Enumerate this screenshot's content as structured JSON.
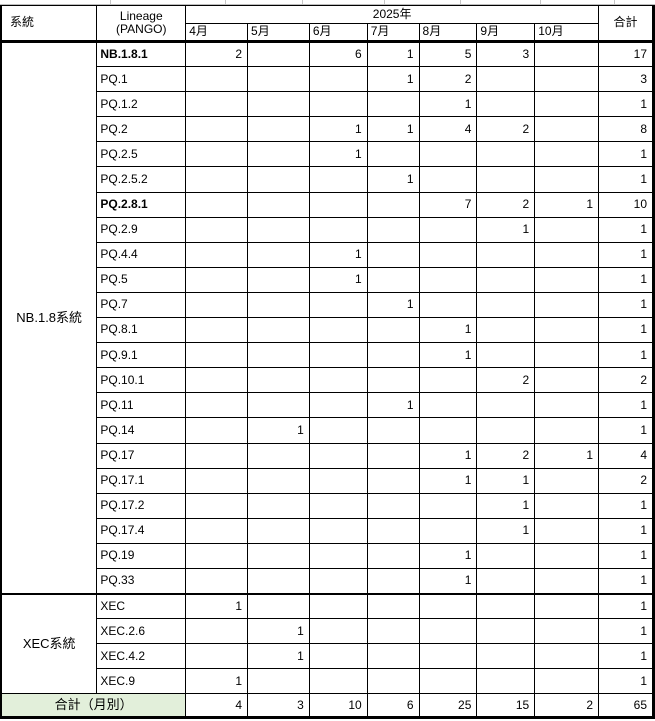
{
  "colors": {
    "header_fill": "#e2efda",
    "border": "#000000",
    "sheet_gridline": "#bdbdbd",
    "text": "#000000"
  },
  "table": {
    "header": {
      "col_group": "系統",
      "lineage_line1": "Lineage",
      "lineage_line2": "(PANGO)",
      "year": "2025年",
      "months": [
        "4月",
        "5月",
        "6月",
        "7月",
        "8月",
        "9月",
        "10月"
      ],
      "total": "合計"
    },
    "groups": [
      {
        "name": "NB.1.8系統",
        "rows": [
          {
            "lineage": "NB.1.8.1",
            "bold": true,
            "values": [
              2,
              null,
              6,
              1,
              5,
              3,
              null
            ],
            "total": 17
          },
          {
            "lineage": "PQ.1",
            "bold": false,
            "values": [
              null,
              null,
              null,
              1,
              2,
              null,
              null
            ],
            "total": 3
          },
          {
            "lineage": "PQ.1.2",
            "bold": false,
            "values": [
              null,
              null,
              null,
              null,
              1,
              null,
              null
            ],
            "total": 1
          },
          {
            "lineage": "PQ.2",
            "bold": false,
            "values": [
              null,
              null,
              1,
              1,
              4,
              2,
              null
            ],
            "total": 8
          },
          {
            "lineage": "PQ.2.5",
            "bold": false,
            "values": [
              null,
              null,
              1,
              null,
              null,
              null,
              null
            ],
            "total": 1
          },
          {
            "lineage": "PQ.2.5.2",
            "bold": false,
            "values": [
              null,
              null,
              null,
              1,
              null,
              null,
              null
            ],
            "total": 1
          },
          {
            "lineage": "PQ.2.8.1",
            "bold": true,
            "values": [
              null,
              null,
              null,
              null,
              7,
              2,
              1
            ],
            "total": 10
          },
          {
            "lineage": "PQ.2.9",
            "bold": false,
            "values": [
              null,
              null,
              null,
              null,
              null,
              1,
              null
            ],
            "total": 1
          },
          {
            "lineage": "PQ.4.4",
            "bold": false,
            "values": [
              null,
              null,
              1,
              null,
              null,
              null,
              null
            ],
            "total": 1
          },
          {
            "lineage": "PQ.5",
            "bold": false,
            "values": [
              null,
              null,
              1,
              null,
              null,
              null,
              null
            ],
            "total": 1
          },
          {
            "lineage": "PQ.7",
            "bold": false,
            "values": [
              null,
              null,
              null,
              1,
              null,
              null,
              null
            ],
            "total": 1
          },
          {
            "lineage": "PQ.8.1",
            "bold": false,
            "values": [
              null,
              null,
              null,
              null,
              1,
              null,
              null
            ],
            "total": 1
          },
          {
            "lineage": "PQ.9.1",
            "bold": false,
            "values": [
              null,
              null,
              null,
              null,
              1,
              null,
              null
            ],
            "total": 1
          },
          {
            "lineage": "PQ.10.1",
            "bold": false,
            "values": [
              null,
              null,
              null,
              null,
              null,
              2,
              null
            ],
            "total": 2
          },
          {
            "lineage": "PQ.11",
            "bold": false,
            "values": [
              null,
              null,
              null,
              1,
              null,
              null,
              null
            ],
            "total": 1
          },
          {
            "lineage": "PQ.14",
            "bold": false,
            "values": [
              null,
              1,
              null,
              null,
              null,
              null,
              null
            ],
            "total": 1
          },
          {
            "lineage": "PQ.17",
            "bold": false,
            "values": [
              null,
              null,
              null,
              null,
              1,
              2,
              1
            ],
            "total": 4
          },
          {
            "lineage": "PQ.17.1",
            "bold": false,
            "values": [
              null,
              null,
              null,
              null,
              1,
              1,
              null
            ],
            "total": 2
          },
          {
            "lineage": "PQ.17.2",
            "bold": false,
            "values": [
              null,
              null,
              null,
              null,
              null,
              1,
              null
            ],
            "total": 1
          },
          {
            "lineage": "PQ.17.4",
            "bold": false,
            "values": [
              null,
              null,
              null,
              null,
              null,
              1,
              null
            ],
            "total": 1
          },
          {
            "lineage": "PQ.19",
            "bold": false,
            "values": [
              null,
              null,
              null,
              null,
              1,
              null,
              null
            ],
            "total": 1
          },
          {
            "lineage": "PQ.33",
            "bold": false,
            "values": [
              null,
              null,
              null,
              null,
              1,
              null,
              null
            ],
            "total": 1
          }
        ]
      },
      {
        "name": "XEC系統",
        "rows": [
          {
            "lineage": "XEC",
            "bold": false,
            "values": [
              1,
              null,
              null,
              null,
              null,
              null,
              null
            ],
            "total": 1
          },
          {
            "lineage": "XEC.2.6",
            "bold": false,
            "values": [
              null,
              1,
              null,
              null,
              null,
              null,
              null
            ],
            "total": 1
          },
          {
            "lineage": "XEC.4.2",
            "bold": false,
            "values": [
              null,
              1,
              null,
              null,
              null,
              null,
              null
            ],
            "total": 1
          },
          {
            "lineage": "XEC.9",
            "bold": false,
            "values": [
              1,
              null,
              null,
              null,
              null,
              null,
              null
            ],
            "total": 1
          }
        ]
      }
    ],
    "footer": {
      "label": "合計（月別）",
      "values": [
        4,
        3,
        10,
        6,
        25,
        15,
        2
      ],
      "total": 65
    }
  }
}
